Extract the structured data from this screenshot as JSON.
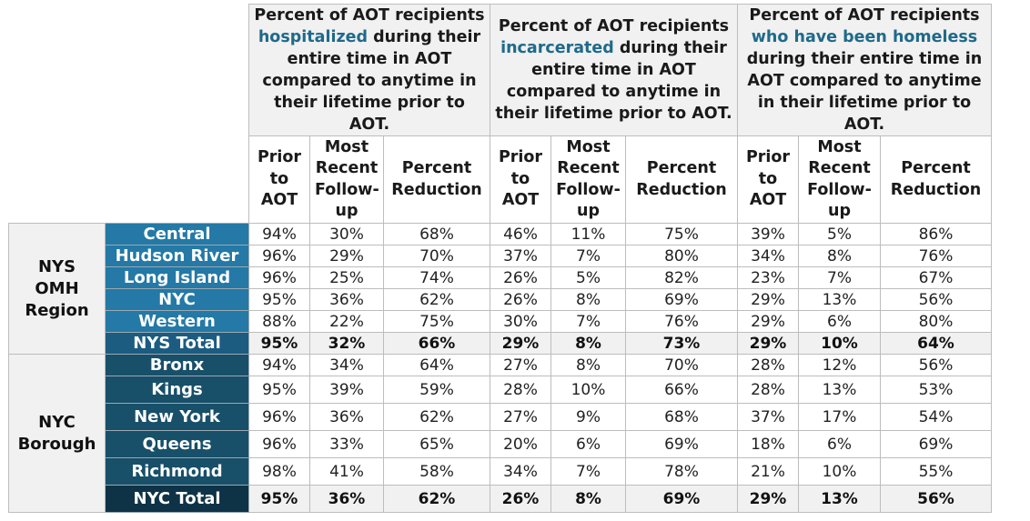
{
  "header": {
    "groups": [
      {
        "pre": "Percent of AOT recipients",
        "highlight": "hospitalized",
        "post": "during their entire time in AOT compared to anytime in their lifetime prior to AOT."
      },
      {
        "pre": "Percent of AOT recipients",
        "highlight": "incarcerated",
        "post": "during their entire time in AOT compared to anytime in their lifetime prior to AOT."
      },
      {
        "pre": "Percent of AOT recipients",
        "highlight": "who have been homeless",
        "post": "during their entire time in AOT compared to anytime in their lifetime prior to AOT."
      }
    ],
    "subheaders": [
      "Prior to AOT",
      "Most Recent Follow-up",
      "Percent Reduction"
    ]
  },
  "colors": {
    "region_label_bg": "#2479a6",
    "region_total_bg": "#1b5c80",
    "borough_label_bg": "#184f69",
    "borough_total_bg": "#0f3346",
    "highlight_text": "#1f6a8a",
    "header_bg": "#f1f1f1"
  },
  "sections": [
    {
      "group_label": "NYS OMH Region",
      "rows": [
        {
          "label": "Central",
          "values": [
            "94%",
            "30%",
            "68%",
            "46%",
            "11%",
            "75%",
            "39%",
            "5%",
            "86%"
          ]
        },
        {
          "label": "Hudson River",
          "values": [
            "96%",
            "29%",
            "70%",
            "37%",
            "7%",
            "80%",
            "34%",
            "8%",
            "76%"
          ]
        },
        {
          "label": "Long Island",
          "values": [
            "96%",
            "25%",
            "74%",
            "26%",
            "5%",
            "82%",
            "23%",
            "7%",
            "67%"
          ]
        },
        {
          "label": "NYC",
          "values": [
            "95%",
            "36%",
            "62%",
            "26%",
            "8%",
            "69%",
            "29%",
            "13%",
            "56%"
          ]
        },
        {
          "label": "Western",
          "values": [
            "88%",
            "22%",
            "75%",
            "30%",
            "7%",
            "76%",
            "29%",
            "6%",
            "80%"
          ]
        }
      ],
      "total": {
        "label": "NYS Total",
        "values": [
          "95%",
          "32%",
          "66%",
          "29%",
          "8%",
          "73%",
          "29%",
          "10%",
          "64%"
        ]
      }
    },
    {
      "group_label": "NYC Borough",
      "rows": [
        {
          "label": "Bronx",
          "values": [
            "94%",
            "34%",
            "64%",
            "27%",
            "8%",
            "70%",
            "28%",
            "12%",
            "56%"
          ]
        },
        {
          "label": "Kings",
          "values": [
            "95%",
            "39%",
            "59%",
            "28%",
            "10%",
            "66%",
            "28%",
            "13%",
            "53%"
          ]
        },
        {
          "label": "New York",
          "values": [
            "96%",
            "36%",
            "62%",
            "27%",
            "9%",
            "68%",
            "37%",
            "17%",
            "54%"
          ]
        },
        {
          "label": "Queens",
          "values": [
            "96%",
            "33%",
            "65%",
            "20%",
            "6%",
            "69%",
            "18%",
            "6%",
            "69%"
          ]
        },
        {
          "label": "Richmond",
          "values": [
            "98%",
            "41%",
            "58%",
            "34%",
            "7%",
            "78%",
            "21%",
            "10%",
            "55%"
          ]
        }
      ],
      "total": {
        "label": "NYC Total",
        "values": [
          "95%",
          "36%",
          "62%",
          "26%",
          "8%",
          "69%",
          "29%",
          "13%",
          "56%"
        ]
      }
    }
  ]
}
